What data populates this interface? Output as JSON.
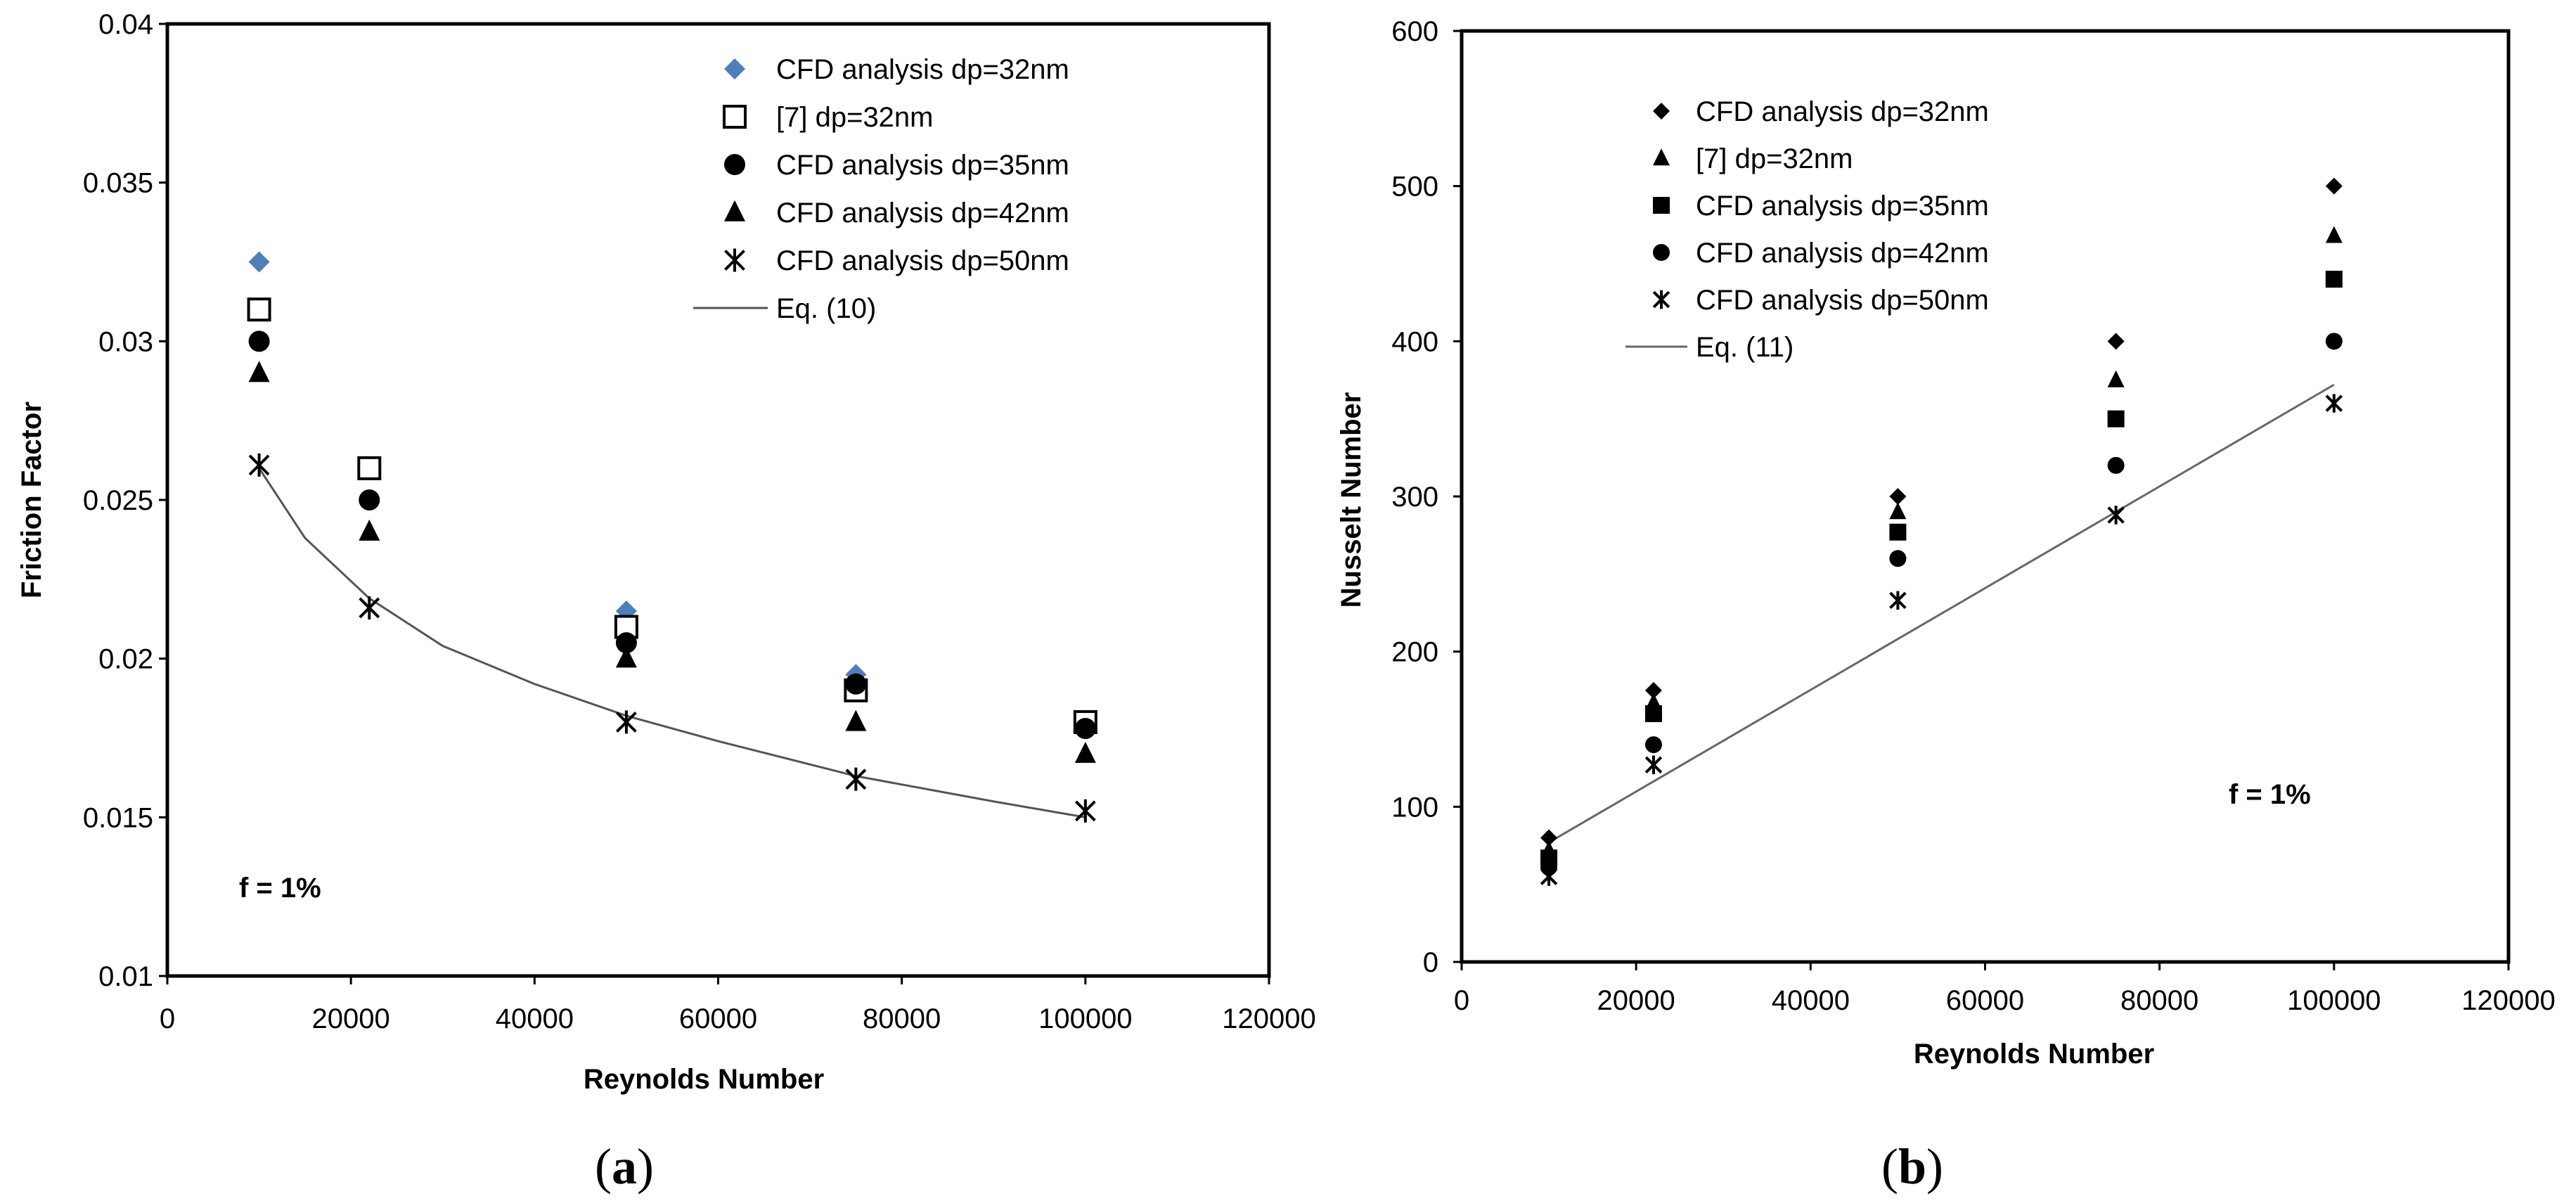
{
  "chart_data": [
    {
      "type": "scatter",
      "panel_label": "a",
      "xlabel": "Reynolds Number",
      "ylabel": "Friction Factor",
      "xlim": [
        0,
        120000
      ],
      "ylim": [
        0.01,
        0.04
      ],
      "x_ticks": [
        0,
        20000,
        40000,
        60000,
        80000,
        100000,
        120000
      ],
      "y_ticks": [
        0.01,
        0.015,
        0.02,
        0.025,
        0.03,
        0.035,
        0.04
      ],
      "x_tick_labels": [
        "0",
        "20000",
        "40000",
        "60000",
        "80000",
        "100000",
        "120000"
      ],
      "y_tick_labels": [
        "0.01",
        "0.015",
        "0.02",
        "0.025",
        "0.03",
        "0.035",
        "0.04"
      ],
      "grid": false,
      "legend_position": "top-right",
      "annotation": "f = 1%",
      "series": [
        {
          "name": "CFD analysis dp=32nm",
          "marker": "diamond",
          "color": "#4f7fb8",
          "x": [
            10000,
            22000,
            50000,
            75000,
            100000
          ],
          "y": [
            0.0325,
            0.026,
            0.0215,
            0.0195,
            0.018
          ]
        },
        {
          "name": "[7] dp=32nm",
          "marker": "square-open",
          "color": "#000000",
          "x": [
            10000,
            22000,
            50000,
            75000,
            100000
          ],
          "y": [
            0.031,
            0.026,
            0.021,
            0.019,
            0.018
          ]
        },
        {
          "name": "CFD analysis dp=35nm",
          "marker": "circle",
          "color": "#000000",
          "x": [
            10000,
            22000,
            50000,
            75000,
            100000
          ],
          "y": [
            0.03,
            0.025,
            0.0205,
            0.0192,
            0.0178
          ]
        },
        {
          "name": "CFD analysis dp=42nm",
          "marker": "triangle",
          "color": "#000000",
          "x": [
            10000,
            22000,
            50000,
            75000,
            100000
          ],
          "y": [
            0.029,
            0.024,
            0.02,
            0.018,
            0.017
          ]
        },
        {
          "name": "CFD analysis dp=50nm",
          "marker": "star",
          "color": "#000000",
          "x": [
            10000,
            22000,
            50000,
            75000,
            100000
          ],
          "y": [
            0.0261,
            0.0216,
            0.018,
            0.0162,
            0.0152
          ]
        },
        {
          "name": "Eq. (10)",
          "marker": "line",
          "color": "#555555",
          "x": [
            10000,
            15000,
            22000,
            30000,
            40000,
            50000,
            60000,
            75000,
            90000,
            100000
          ],
          "y": [
            0.026,
            0.0238,
            0.0219,
            0.0204,
            0.0192,
            0.0182,
            0.0174,
            0.0163,
            0.0155,
            0.015
          ]
        }
      ]
    },
    {
      "type": "scatter",
      "panel_label": "b",
      "xlabel": "Reynolds Number",
      "ylabel": "Nusselt Number",
      "xlim": [
        0,
        120000
      ],
      "ylim": [
        0,
        600
      ],
      "x_ticks": [
        0,
        20000,
        40000,
        60000,
        80000,
        100000,
        120000
      ],
      "y_ticks": [
        0,
        100,
        200,
        300,
        400,
        500,
        600
      ],
      "x_tick_labels": [
        "0",
        "20000",
        "40000",
        "60000",
        "80000",
        "100000",
        "120000"
      ],
      "y_tick_labels": [
        "0",
        "100",
        "200",
        "300",
        "400",
        "500",
        "600"
      ],
      "grid": false,
      "legend_position": "top-left",
      "annotation": "f = 1%",
      "series": [
        {
          "name": "CFD analysis dp=32nm",
          "marker": "diamond",
          "color": "#000000",
          "x": [
            10000,
            22000,
            50000,
            75000,
            100000
          ],
          "y": [
            80,
            175,
            300,
            400,
            500
          ]
        },
        {
          "name": "[7] dp=32nm",
          "marker": "triangle",
          "color": "#000000",
          "x": [
            10000,
            22000,
            50000,
            75000,
            100000
          ],
          "y": [
            72,
            167,
            290,
            375,
            468
          ]
        },
        {
          "name": "CFD analysis dp=35nm",
          "marker": "square",
          "color": "#000000",
          "x": [
            10000,
            22000,
            50000,
            75000,
            100000
          ],
          "y": [
            67,
            160,
            277,
            350,
            440
          ]
        },
        {
          "name": "CFD analysis dp=42nm",
          "marker": "circle",
          "color": "#000000",
          "x": [
            10000,
            22000,
            50000,
            75000,
            100000
          ],
          "y": [
            61,
            140,
            260,
            320,
            400
          ]
        },
        {
          "name": "CFD analysis dp=50nm",
          "marker": "star",
          "color": "#000000",
          "x": [
            10000,
            22000,
            50000,
            75000,
            100000
          ],
          "y": [
            55,
            127,
            233,
            288,
            360
          ]
        },
        {
          "name": "Eq. (11)",
          "marker": "line",
          "color": "#666666",
          "x": [
            10000,
            100000
          ],
          "y": [
            77,
            372
          ]
        }
      ]
    }
  ]
}
